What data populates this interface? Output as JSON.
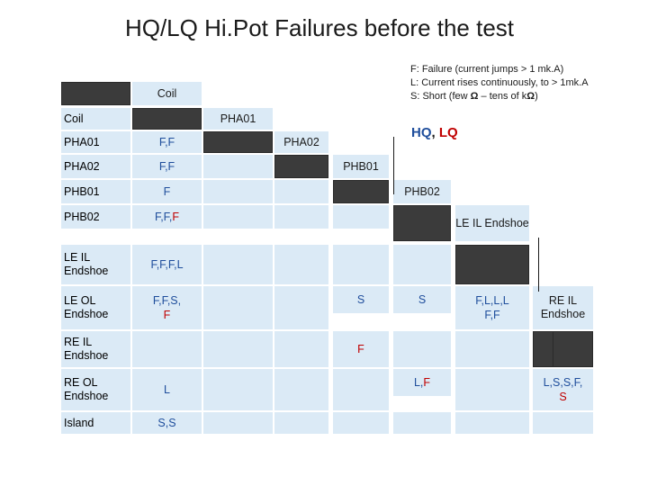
{
  "title": "HQ/LQ Hi.Pot Failures before the test",
  "legend": {
    "f": "F: Failure (current jumps > 1 mk.A)",
    "l": "L: Current rises continuously, to > 1mk.A",
    "s_pre": "S: Short (few ",
    "s_mid": " – tens of k",
    "s_post": ")",
    "omega": "Ω"
  },
  "hq_lq": {
    "hq": "HQ",
    "sep": ", ",
    "lq": "LQ"
  },
  "table": {
    "corner_label": "Coil",
    "row_header_label": "Coil",
    "columns": [
      "PHA01",
      "PHA02",
      "PHB01",
      "PHB02",
      "LE IL Endshoe",
      "RE IL Endshoe"
    ],
    "rows": [
      {
        "label": "PHA01",
        "parts": [
          {
            "t": "F,F",
            "c": "blue"
          }
        ]
      },
      {
        "label": "PHA02",
        "parts": [
          {
            "t": "F,F",
            "c": "blue"
          }
        ]
      },
      {
        "label": "PHB01",
        "parts": [
          {
            "t": "F",
            "c": "blue"
          }
        ]
      },
      {
        "label": "PHB02",
        "parts": [
          {
            "t": "F,F, ",
            "c": "blue"
          },
          {
            "t": "F",
            "c": "red"
          }
        ]
      },
      {
        "label": "LE IL Endshoe",
        "parts": [
          {
            "t": "F,F,F,L",
            "c": "blue"
          }
        ]
      },
      {
        "label": "LE OL Endshoe",
        "parts": [
          {
            "t": "F,F,S, ",
            "c": "blue"
          },
          {
            "t": "F",
            "c": "red"
          }
        ]
      },
      {
        "label": "RE IL Endshoe",
        "parts": []
      },
      {
        "label": "RE OL Endshoe",
        "parts": [
          {
            "t": "L",
            "c": "blue"
          }
        ]
      },
      {
        "label": "Island",
        "parts": [
          {
            "t": "S,S",
            "c": "blue"
          }
        ]
      }
    ],
    "extra": {
      "s_phb01": "S",
      "f_phb01": "F",
      "s_phb02": "S",
      "l_phb02_a": "L,",
      "l_phb02_b": "F",
      "le_a": "F,L,L,L",
      "le_b": "F,F",
      "re_a": "L,S,S,F,",
      "re_b": "S"
    }
  },
  "colors": {
    "dark": "#3b3b3b",
    "light": "#dbeaf6",
    "blue": "#1f4e9c",
    "red": "#c00000"
  }
}
